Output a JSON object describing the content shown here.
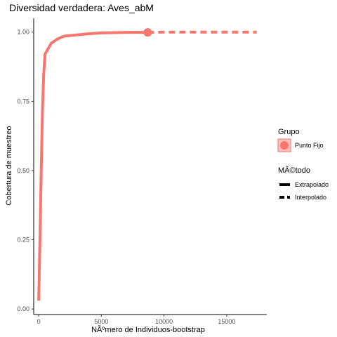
{
  "chart_data": {
    "type": "line",
    "title": "Diversidad verdadera: Aves_abM",
    "xlabel": "NÃºmero de Individuos-bootstrap",
    "ylabel": "Cobertura de muestreo",
    "xlim": [
      -400,
      18200
    ],
    "ylim": [
      -0.02,
      1.05
    ],
    "xticks": [
      0,
      5000,
      10000,
      15000
    ],
    "xtick_labels": [
      "0",
      "5000",
      "10000",
      "15000"
    ],
    "yticks": [
      0.0,
      0.25,
      0.5,
      0.75,
      1.0
    ],
    "ytick_labels": [
      "0.00",
      "0.25",
      "0.50",
      "0.75",
      "1.00"
    ],
    "grid": false,
    "legend_position": "right",
    "series": [
      {
        "name": "Punto Fijo",
        "color": "#F8766D",
        "method": "Interpolado",
        "x": [
          0,
          100,
          200,
          300,
          400,
          500,
          1000,
          1500,
          2000,
          3000,
          4000,
          5000,
          6000,
          7000,
          8000,
          8700
        ],
        "y": [
          0.03,
          0.25,
          0.5,
          0.72,
          0.85,
          0.92,
          0.96,
          0.975,
          0.985,
          0.99,
          0.994,
          0.997,
          0.998,
          0.999,
          0.999,
          0.999
        ]
      },
      {
        "name": "Punto Fijo",
        "color": "#F8766D",
        "method": "Extrapolado",
        "x": [
          8700,
          10000,
          12000,
          14000,
          16000,
          17400
        ],
        "y": [
          0.999,
          1.0,
          1.0,
          1.0,
          1.0,
          1.0
        ]
      }
    ],
    "reference_point": {
      "x": 8700,
      "y": 0.999
    }
  },
  "legend": {
    "group_title": "Grupo",
    "group_items": [
      {
        "label": "Punto Fijo",
        "color": "#F8766D"
      }
    ],
    "method_title": "MÃ©todo",
    "method_items": [
      {
        "label": "Extrapolado",
        "style": "solid"
      },
      {
        "label": "Interpolado",
        "style": "dashed"
      }
    ]
  }
}
